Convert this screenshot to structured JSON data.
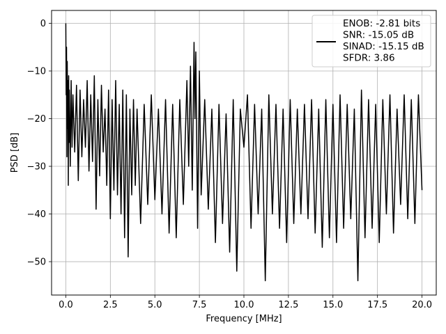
{
  "chart_data": {
    "type": "line",
    "title": "",
    "xlabel": "Frequency [MHz]",
    "ylabel": "PSD [dB]",
    "xlim": [
      -0.8,
      20.8
    ],
    "ylim": [
      -57,
      2.7
    ],
    "xticks": [
      0.0,
      2.5,
      5.0,
      7.5,
      10.0,
      12.5,
      15.0,
      17.5,
      20.0
    ],
    "xtick_labels": [
      "0.0",
      "2.5",
      "5.0",
      "7.5",
      "10.0",
      "12.5",
      "15.0",
      "17.5",
      "20.0"
    ],
    "yticks": [
      0,
      -10,
      -20,
      -30,
      -40,
      -50
    ],
    "ytick_labels": [
      "0",
      "−10",
      "−20",
      "−30",
      "−40",
      "−50"
    ],
    "grid": true,
    "legend_position": "top-right",
    "legend_lines": [
      "ENOB: -2.81 bits",
      "SNR: -15.05 dB",
      "SINAD: -15.15 dB",
      "SFDR: 3.86"
    ],
    "series": [
      {
        "color": "#000000",
        "x": [
          0.0,
          0.02,
          0.04,
          0.06,
          0.08,
          0.1,
          0.12,
          0.14,
          0.16,
          0.18,
          0.2,
          0.25,
          0.3,
          0.35,
          0.4,
          0.5,
          0.6,
          0.7,
          0.8,
          0.9,
          1.0,
          1.1,
          1.2,
          1.3,
          1.4,
          1.5,
          1.6,
          1.7,
          1.8,
          1.9,
          2.0,
          2.1,
          2.2,
          2.3,
          2.4,
          2.5,
          2.6,
          2.7,
          2.8,
          2.9,
          3.0,
          3.1,
          3.2,
          3.3,
          3.4,
          3.5,
          3.6,
          3.7,
          3.8,
          3.9,
          4.0,
          4.2,
          4.4,
          4.6,
          4.8,
          5.0,
          5.2,
          5.4,
          5.6,
          5.8,
          6.0,
          6.2,
          6.4,
          6.6,
          6.8,
          6.9,
          7.0,
          7.1,
          7.2,
          7.25,
          7.3,
          7.4,
          7.5,
          7.6,
          7.8,
          8.0,
          8.2,
          8.4,
          8.6,
          8.8,
          9.0,
          9.2,
          9.4,
          9.6,
          9.8,
          10.0,
          10.2,
          10.4,
          10.6,
          10.8,
          11.0,
          11.2,
          11.4,
          11.6,
          11.8,
          12.0,
          12.2,
          12.4,
          12.6,
          12.8,
          13.0,
          13.2,
          13.4,
          13.6,
          13.8,
          14.0,
          14.2,
          14.4,
          14.6,
          14.8,
          15.0,
          15.2,
          15.4,
          15.6,
          15.8,
          16.0,
          16.2,
          16.4,
          16.6,
          16.8,
          17.0,
          17.2,
          17.4,
          17.6,
          17.8,
          18.0,
          18.2,
          18.4,
          18.6,
          18.8,
          19.0,
          19.2,
          19.4,
          19.6,
          19.8,
          20.0
        ],
        "y": [
          0,
          -15,
          -5,
          -28,
          -8,
          -22,
          -12,
          -34,
          -11,
          -25,
          -14,
          -30,
          -12,
          -26,
          -15,
          -27,
          -13,
          -33,
          -14,
          -28,
          -16,
          -26,
          -12,
          -31,
          -15,
          -29,
          -11,
          -39,
          -16,
          -32,
          -13,
          -27,
          -18,
          -34,
          -14,
          -41,
          -16,
          -35,
          -12,
          -36,
          -17,
          -40,
          -14,
          -45,
          -15,
          -49,
          -18,
          -36,
          -16,
          -34,
          -18,
          -42,
          -17,
          -38,
          -15,
          -37,
          -18,
          -40,
          -16,
          -44,
          -17,
          -45,
          -16,
          -38,
          -12,
          -30,
          -9,
          -35,
          -4,
          -20,
          -6,
          -43,
          -10,
          -36,
          -16,
          -39,
          -18,
          -46,
          -17,
          -42,
          -19,
          -48,
          -16,
          -52,
          -18,
          -26,
          -15,
          -43,
          -17,
          -40,
          -18,
          -54,
          -15,
          -40,
          -17,
          -43,
          -18,
          -46,
          -16,
          -42,
          -18,
          -40,
          -17,
          -41,
          -16,
          -44,
          -18,
          -47,
          -16,
          -45,
          -17,
          -46,
          -15,
          -43,
          -17,
          -41,
          -18,
          -54,
          -14,
          -45,
          -16,
          -43,
          -17,
          -46,
          -16,
          -40,
          -15,
          -44,
          -18,
          -38,
          -15,
          -41,
          -16,
          -42,
          -15,
          -35
        ]
      }
    ]
  }
}
